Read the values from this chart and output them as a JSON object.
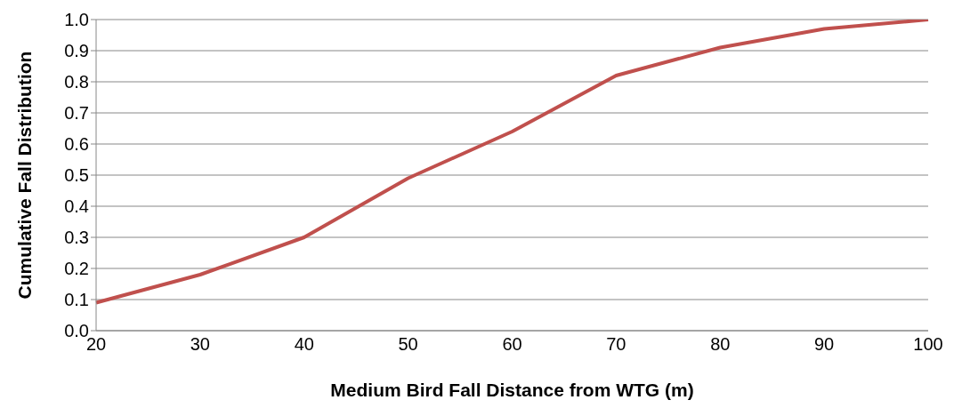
{
  "chart_data": {
    "type": "line",
    "xlabel": "Medium Bird Fall Distance from WTG (m)",
    "ylabel": "Cumulative Fall Distribution",
    "categories": [
      "20",
      "30",
      "40",
      "50",
      "60",
      "70",
      "80",
      "90",
      "100"
    ],
    "series": [
      {
        "color": "#c0504d",
        "values": [
          0.09,
          0.18,
          0.3,
          0.49,
          0.64,
          0.82,
          0.91,
          0.97,
          1.0
        ]
      }
    ],
    "ylim": [
      0,
      1
    ],
    "yticks": [
      {
        "value": 0,
        "label": "0.0"
      },
      {
        "value": 0.1,
        "label": "0.1"
      },
      {
        "value": 0.2,
        "label": "0.2"
      },
      {
        "value": 0.3,
        "label": "0.3"
      },
      {
        "value": 0.4,
        "label": "0.4"
      },
      {
        "value": 0.5,
        "label": "0.5"
      },
      {
        "value": 0.6,
        "label": "0.6"
      },
      {
        "value": 0.7,
        "label": "0.7"
      },
      {
        "value": 0.8,
        "label": "0.8"
      },
      {
        "value": 0.9,
        "label": "0.9"
      },
      {
        "value": 1,
        "label": "1.0"
      }
    ],
    "grid": "y",
    "marker": "none",
    "line_style": "solid"
  }
}
